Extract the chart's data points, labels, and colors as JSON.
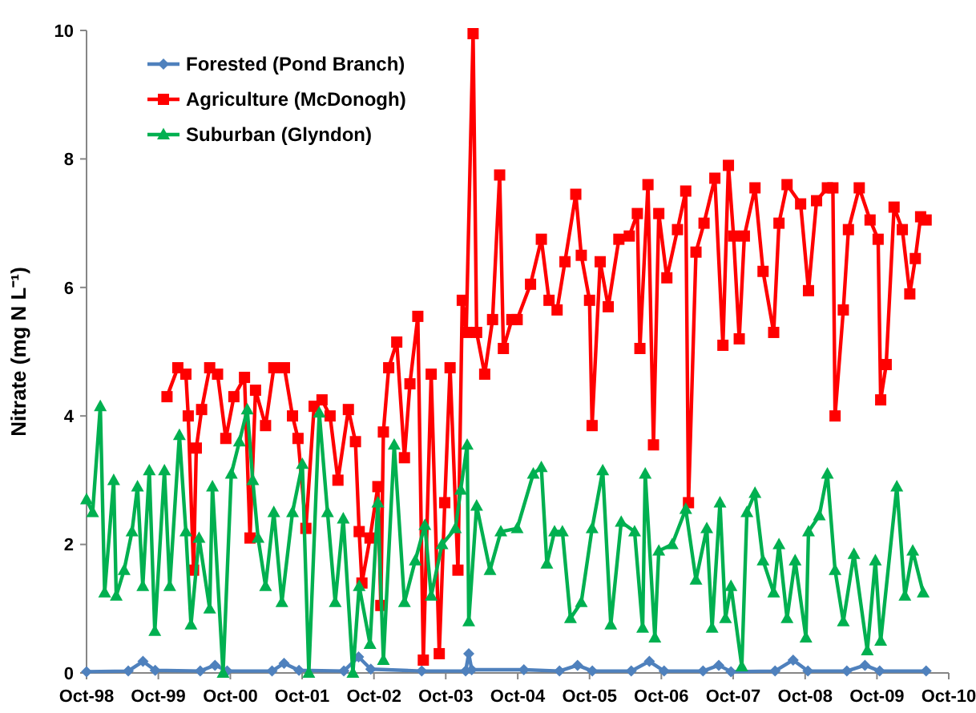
{
  "chart_data": {
    "type": "line",
    "ylabel": "Nitrate (mg N L⁻¹)",
    "xlim": [
      "1998-10-01",
      "2010-10-01"
    ],
    "xticks": [
      {
        "value": "1998-10-01",
        "label": "Oct-98"
      },
      {
        "value": "1999-10-01",
        "label": "Oct-99"
      },
      {
        "value": "2000-10-01",
        "label": "Oct-00"
      },
      {
        "value": "2001-10-01",
        "label": "Oct-01"
      },
      {
        "value": "2002-10-01",
        "label": "Oct-02"
      },
      {
        "value": "2003-10-01",
        "label": "Oct-03"
      },
      {
        "value": "2004-10-01",
        "label": "Oct-04"
      },
      {
        "value": "2005-10-01",
        "label": "Oct-05"
      },
      {
        "value": "2006-10-01",
        "label": "Oct-06"
      },
      {
        "value": "2007-10-01",
        "label": "Oct-07"
      },
      {
        "value": "2008-10-01",
        "label": "Oct-08"
      },
      {
        "value": "2009-10-01",
        "label": "Oct-09"
      },
      {
        "value": "2010-10-01",
        "label": "Oct-10"
      }
    ],
    "ylim": [
      0,
      10
    ],
    "yticks": [
      0,
      2,
      4,
      6,
      8,
      10
    ],
    "grid": false,
    "legend": "top left",
    "line_style": "solid",
    "series": [
      {
        "name": "Forested (Pond Branch)",
        "color": "#4f81bd",
        "marker": "diamond",
        "x": [
          "1998-10-01",
          "1999-05-01",
          "1999-07-15",
          "1999-09-15",
          "2000-05-01",
          "2000-07-15",
          "2000-09-15",
          "2001-05-01",
          "2001-07-01",
          "2001-09-15",
          "2002-05-01",
          "2002-07-15",
          "2002-09-15",
          "2003-06-01",
          "2004-01-10",
          "2004-01-26",
          "2004-02-10",
          "2004-11-01",
          "2005-05-01",
          "2005-08-01",
          "2005-10-15",
          "2006-05-01",
          "2006-08-01",
          "2006-10-15",
          "2007-05-01",
          "2007-07-20",
          "2007-09-20",
          "2008-05-01",
          "2008-08-01",
          "2008-10-15",
          "2009-05-01",
          "2009-08-01",
          "2009-10-15",
          "2010-06-08"
        ],
        "values": [
          0.02,
          0.03,
          0.18,
          0.04,
          0.03,
          0.12,
          0.03,
          0.03,
          0.15,
          0.04,
          0.03,
          0.25,
          0.06,
          0.03,
          0.03,
          0.3,
          0.05,
          0.05,
          0.03,
          0.12,
          0.03,
          0.03,
          0.18,
          0.03,
          0.03,
          0.12,
          0.02,
          0.03,
          0.2,
          0.03,
          0.03,
          0.12,
          0.03,
          0.03
        ]
      },
      {
        "name": "Agriculture (McDonogh)",
        "color": "#ff0000",
        "marker": "square",
        "x": [
          "1999-11-14",
          "2000-01-08",
          "2000-02-18",
          "2000-03-01",
          "2000-03-28",
          "2000-04-11",
          "2000-05-08",
          "2000-06-18",
          "2000-07-28",
          "2000-09-08",
          "2000-10-19",
          "2000-12-12",
          "2001-01-09",
          "2001-02-06",
          "2001-03-29",
          "2001-05-10",
          "2001-07-03",
          "2001-08-13",
          "2001-09-10",
          "2001-10-20",
          "2001-12-01",
          "2002-01-10",
          "2002-02-20",
          "2002-04-01",
          "2002-05-24",
          "2002-06-29",
          "2002-07-18",
          "2002-08-01",
          "2002-09-11",
          "2002-10-21",
          "2002-11-05",
          "2002-11-18",
          "2002-12-15",
          "2003-01-25",
          "2003-03-05",
          "2003-04-02",
          "2003-05-12",
          "2003-06-09",
          "2003-07-19",
          "2003-08-29",
          "2003-09-26",
          "2003-10-23",
          "2003-12-02",
          "2003-12-24",
          "2004-01-13",
          "2004-02-17",
          "2004-03-06",
          "2004-04-16",
          "2004-05-26",
          "2004-07-01",
          "2004-07-20",
          "2004-09-01",
          "2004-09-28",
          "2004-12-05",
          "2005-01-29",
          "2005-03-09",
          "2005-04-19",
          "2005-05-29",
          "2005-07-23",
          "2005-08-20",
          "2005-10-01",
          "2005-10-14",
          "2005-11-24",
          "2006-01-04",
          "2006-02-27",
          "2006-04-21",
          "2006-06-01",
          "2006-06-14",
          "2006-07-25",
          "2006-08-22",
          "2006-09-18",
          "2006-10-29",
          "2006-12-22",
          "2007-02-02",
          "2007-02-16",
          "2007-03-26",
          "2007-05-06",
          "2007-06-30",
          "2007-08-10",
          "2007-09-07",
          "2007-10-03",
          "2007-11-01",
          "2007-11-27",
          "2008-01-20",
          "2008-03-01",
          "2008-04-24",
          "2008-05-21",
          "2008-07-01",
          "2008-09-08",
          "2008-10-18",
          "2008-11-28",
          "2009-01-22",
          "2009-02-19",
          "2009-03-02",
          "2009-04-13",
          "2009-05-09",
          "2009-07-03",
          "2009-08-27",
          "2009-10-07",
          "2009-10-20",
          "2009-11-17",
          "2009-12-27",
          "2010-02-07",
          "2010-03-17",
          "2010-04-14",
          "2010-05-11",
          "2010-06-08"
        ],
        "values": [
          4.3,
          4.75,
          4.65,
          4.0,
          1.6,
          3.5,
          4.1,
          4.75,
          4.65,
          3.65,
          4.3,
          4.6,
          2.1,
          4.4,
          3.85,
          4.75,
          4.75,
          4.0,
          3.65,
          2.25,
          4.15,
          4.25,
          4.0,
          3.0,
          4.1,
          3.6,
          2.2,
          1.4,
          2.1,
          2.9,
          1.05,
          3.75,
          4.75,
          5.15,
          3.35,
          4.5,
          5.55,
          0.2,
          4.65,
          0.3,
          2.65,
          4.75,
          1.6,
          5.8,
          5.3,
          9.95,
          5.3,
          4.65,
          5.5,
          7.75,
          5.05,
          5.5,
          5.5,
          6.05,
          6.75,
          5.8,
          5.65,
          6.4,
          7.45,
          6.5,
          5.8,
          3.85,
          6.4,
          5.7,
          6.75,
          6.8,
          7.15,
          5.05,
          7.6,
          3.55,
          7.15,
          6.15,
          6.9,
          7.5,
          2.65,
          6.55,
          7.0,
          7.7,
          5.1,
          7.9,
          6.8,
          5.2,
          6.8,
          7.55,
          6.25,
          5.3,
          7.0,
          7.6,
          7.3,
          5.95,
          7.35,
          7.55,
          7.55,
          4.0,
          5.65,
          6.9,
          7.55,
          7.05,
          6.75,
          4.25,
          4.8,
          7.25,
          6.9,
          5.9,
          6.45,
          7.1,
          7.05
        ]
      },
      {
        "name": "Suburban (Glyndon)",
        "color": "#00b050",
        "marker": "triangle",
        "x": [
          "1998-10-01",
          "1998-11-01",
          "1998-12-10",
          "1999-01-01",
          "1999-02-16",
          "1999-03-01",
          "1999-04-10",
          "1999-05-20",
          "1999-06-17",
          "1999-07-14",
          "1999-08-16",
          "1999-09-13",
          "1999-11-01",
          "1999-11-28",
          "2000-01-16",
          "2000-02-18",
          "2000-03-15",
          "2000-04-25",
          "2000-06-18",
          "2000-07-02",
          "2000-08-25",
          "2000-10-06",
          "2000-11-16",
          "2000-12-26",
          "2001-01-23",
          "2001-02-19",
          "2001-03-29",
          "2001-05-10",
          "2001-06-20",
          "2001-08-13",
          "2001-10-02",
          "2001-11-04",
          "2001-12-27",
          "2002-02-07",
          "2002-03-18",
          "2002-04-28",
          "2002-06-16",
          "2002-07-18",
          "2002-09-11",
          "2002-10-21",
          "2002-11-18",
          "2003-01-12",
          "2003-03-05",
          "2003-04-29",
          "2003-06-17",
          "2003-07-19",
          "2003-09-12",
          "2003-11-19",
          "2003-12-16",
          "2004-01-18",
          "2004-01-26",
          "2004-03-06",
          "2004-05-13",
          "2004-07-07",
          "2004-09-28",
          "2004-12-19",
          "2005-01-29",
          "2005-02-26",
          "2005-04-06",
          "2005-05-16",
          "2005-06-26",
          "2005-08-20",
          "2005-10-14",
          "2005-12-07",
          "2006-01-17",
          "2006-03-11",
          "2006-05-18",
          "2006-06-28",
          "2006-07-11",
          "2006-08-29",
          "2006-09-18",
          "2006-11-25",
          "2007-02-02",
          "2007-03-26",
          "2007-05-20",
          "2007-06-16",
          "2007-07-26",
          "2007-08-23",
          "2007-09-20",
          "2007-11-14",
          "2007-12-10",
          "2008-01-20",
          "2008-03-01",
          "2008-04-24",
          "2008-05-21",
          "2008-07-01",
          "2008-08-11",
          "2008-10-05",
          "2008-10-18",
          "2008-12-12",
          "2009-01-22",
          "2009-03-02",
          "2009-04-13",
          "2009-06-06",
          "2009-08-13",
          "2009-09-23",
          "2009-10-20",
          "2010-01-10",
          "2010-02-20",
          "2010-04-01",
          "2010-05-24"
        ],
        "values": [
          2.7,
          2.5,
          4.15,
          1.25,
          3.0,
          1.2,
          1.6,
          2.2,
          2.9,
          1.35,
          3.15,
          0.65,
          3.15,
          1.35,
          3.7,
          2.2,
          0.75,
          2.1,
          1.0,
          2.9,
          0,
          3.1,
          3.6,
          4.1,
          3.0,
          2.1,
          1.35,
          2.5,
          1.1,
          2.5,
          3.25,
          0,
          4.05,
          2.5,
          1.1,
          2.4,
          0,
          1.35,
          0.45,
          2.65,
          0.2,
          3.55,
          1.1,
          1.75,
          2.3,
          1.2,
          2.0,
          2.25,
          2.85,
          3.55,
          0.8,
          2.6,
          1.6,
          2.2,
          2.25,
          3.1,
          3.2,
          1.7,
          2.2,
          2.2,
          0.85,
          1.1,
          2.25,
          3.15,
          0.75,
          2.35,
          2.2,
          0.7,
          3.1,
          0.55,
          1.9,
          2.0,
          2.55,
          1.45,
          2.25,
          0.7,
          2.65,
          0.85,
          1.35,
          0.1,
          2.5,
          2.8,
          1.75,
          1.25,
          2.0,
          0.85,
          1.75,
          0.55,
          2.2,
          2.45,
          3.1,
          1.6,
          0.8,
          1.85,
          0.35,
          1.75,
          0.5,
          2.9,
          1.2,
          1.9,
          1.25
        ]
      }
    ]
  }
}
